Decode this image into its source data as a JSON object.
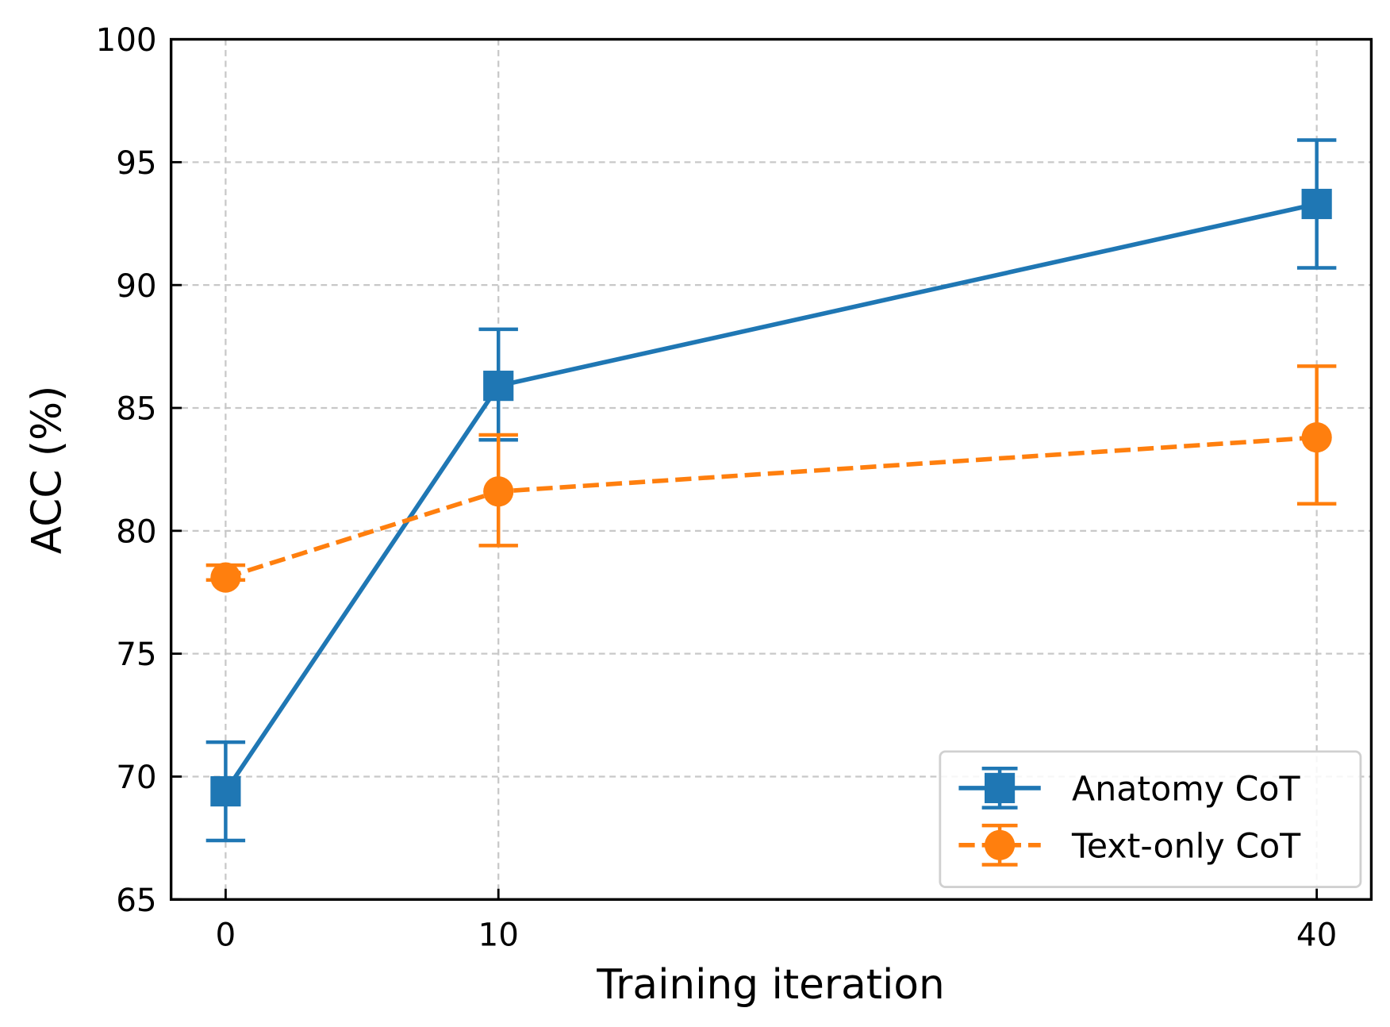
{
  "chart_data": {
    "type": "line",
    "title": "",
    "xlabel": "Training iteration",
    "ylabel": "ACC (%)",
    "x": [
      0,
      10,
      40
    ],
    "xticks": [
      "0",
      "10",
      "40"
    ],
    "yticks": [
      "65",
      "70",
      "75",
      "80",
      "85",
      "90",
      "95",
      "100"
    ],
    "xlim": [
      -2,
      42
    ],
    "ylim": [
      65,
      100
    ],
    "grid": true,
    "legend_position": "bottom-right",
    "series": [
      {
        "name": "Anatomy CoT",
        "color": "#1f77b4",
        "marker": "square",
        "linestyle": "solid",
        "values": [
          69.4,
          85.9,
          93.3
        ],
        "err_low": [
          67.4,
          83.7,
          90.7
        ],
        "err_high": [
          71.4,
          88.2,
          95.9
        ]
      },
      {
        "name": "Text-only CoT",
        "color": "#ff7f0e",
        "marker": "circle",
        "linestyle": "dashed",
        "values": [
          78.1,
          81.6,
          83.8
        ],
        "err_low": [
          78.0,
          79.4,
          81.1
        ],
        "err_high": [
          78.6,
          83.9,
          86.7
        ]
      }
    ]
  }
}
